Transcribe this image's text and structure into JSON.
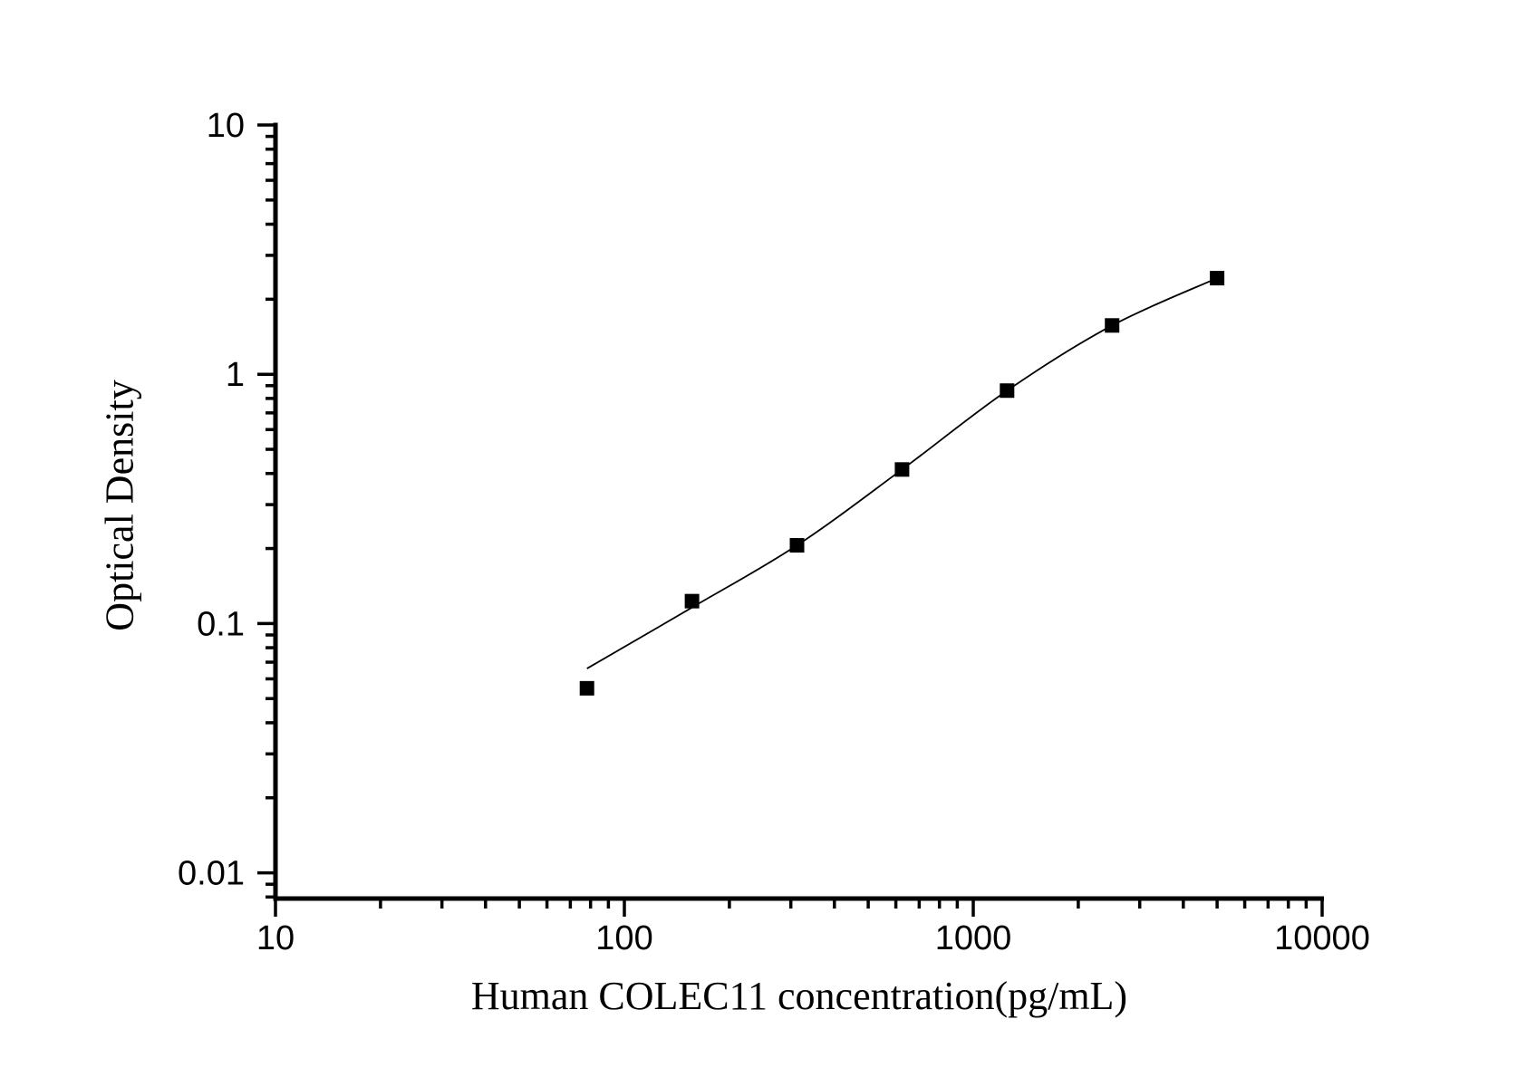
{
  "figure": {
    "background_color": "#ffffff",
    "foreground_color": "#000000"
  },
  "chart_data": {
    "type": "scatter",
    "title": "",
    "xlabel": "Human COLEC11 concentration(pg/mL)",
    "ylabel": "Optical Density",
    "x_scale": "log",
    "y_scale": "log",
    "xlim": [
      10,
      10000
    ],
    "ylim": [
      0.0078,
      10
    ],
    "grid": false,
    "legend": false,
    "x_ticks": [
      {
        "value": 10,
        "label": "10"
      },
      {
        "value": 100,
        "label": "100"
      },
      {
        "value": 1000,
        "label": "1000"
      },
      {
        "value": 10000,
        "label": "10000"
      }
    ],
    "y_ticks": [
      {
        "value": 10,
        "label": "10"
      },
      {
        "value": 1,
        "label": "1"
      },
      {
        "value": 0.1,
        "label": "0.1"
      },
      {
        "value": 0.01,
        "label": "0.01"
      }
    ],
    "series": [
      {
        "name": "standard-curve-points",
        "marker": "square",
        "marker_size": 16,
        "color": "#000000",
        "x": [
          78.125,
          156.25,
          312.5,
          625,
          1250,
          2500,
          5000
        ],
        "y": [
          0.055,
          0.123,
          0.206,
          0.415,
          0.86,
          1.57,
          2.43
        ]
      }
    ],
    "fit_curve": {
      "name": "4pl-fit-line",
      "color": "#000000",
      "points": [
        [
          78.125,
          0.066
        ],
        [
          156.25,
          0.116
        ],
        [
          312.5,
          0.206
        ],
        [
          625,
          0.415
        ],
        [
          1250,
          0.86
        ],
        [
          2500,
          1.57
        ],
        [
          5000,
          2.43
        ]
      ]
    }
  }
}
